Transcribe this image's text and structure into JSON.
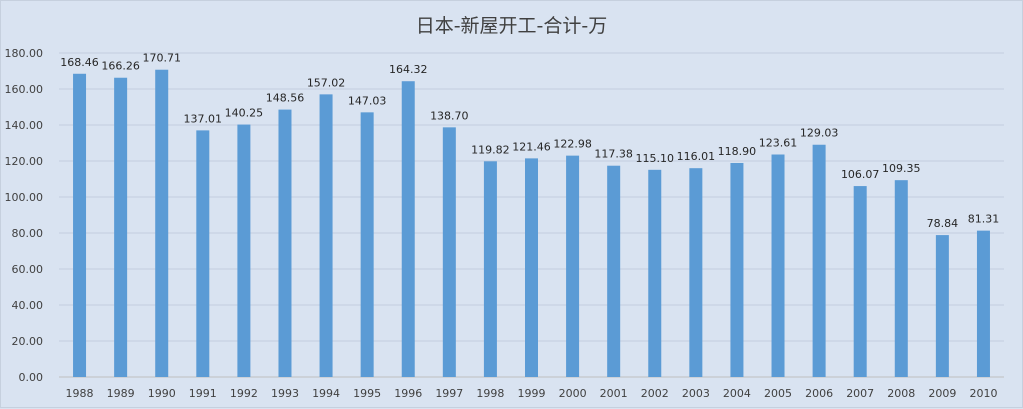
{
  "chart_data": {
    "type": "bar",
    "title": "日本-新屋开工-合计-万",
    "xlabel": "",
    "ylabel": "",
    "ylim": [
      0,
      180
    ],
    "yticks": [
      "0.00",
      "20.00",
      "40.00",
      "60.00",
      "80.00",
      "100.00",
      "120.00",
      "140.00",
      "160.00",
      "180.00"
    ],
    "grid": true,
    "legend": "none",
    "bar_color": "#5b9bd5",
    "categories": [
      "1988",
      "1989",
      "1990",
      "1991",
      "1992",
      "1993",
      "1994",
      "1995",
      "1996",
      "1997",
      "1998",
      "1999",
      "2000",
      "2001",
      "2002",
      "2003",
      "2004",
      "2005",
      "2006",
      "2007",
      "2008",
      "2009",
      "2010"
    ],
    "values": [
      168.46,
      166.26,
      170.71,
      137.01,
      140.25,
      148.56,
      157.02,
      147.03,
      164.32,
      138.7,
      119.82,
      121.46,
      122.98,
      117.38,
      115.1,
      116.01,
      118.9,
      123.61,
      129.03,
      106.07,
      109.35,
      78.84,
      81.31
    ],
    "labels": [
      "168.46",
      "166.26",
      "170.71",
      "137.01",
      "140.25",
      "148.56",
      "157.02",
      "147.03",
      "164.32",
      "138.70",
      "119.82",
      "121.46",
      "122.98",
      "117.38",
      "115.10",
      "116.01",
      "118.90",
      "123.61",
      "129.03",
      "106.07",
      "109.35",
      "78.84",
      "81.31"
    ]
  }
}
